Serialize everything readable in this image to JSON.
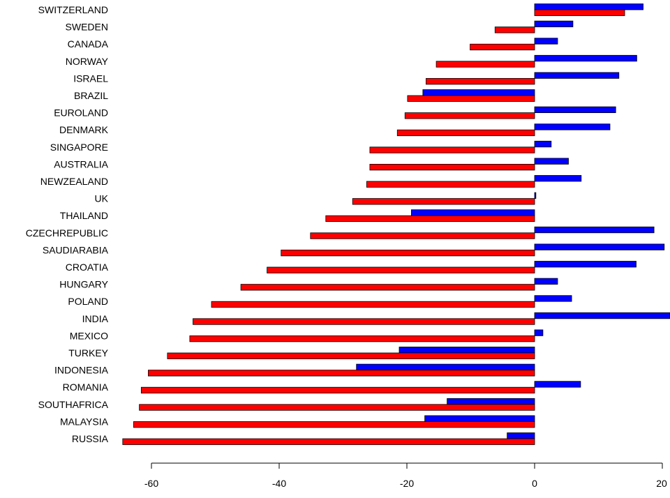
{
  "chart_data": {
    "type": "bar",
    "orientation": "horizontal",
    "title": "",
    "xlabel": "",
    "ylabel": "",
    "xlim": [
      -64.5,
      21.2
    ],
    "xticks": [
      -60,
      -40,
      -20,
      0,
      20
    ],
    "grid": false,
    "legend": "none",
    "categories": [
      "SWITZERLAND",
      "SWEDEN",
      "CANADA",
      "NORWAY",
      "ISRAEL",
      "BRAZIL",
      "EUROLAND",
      "DENMARK",
      "SINGAPORE",
      "AUSTRALIA",
      "NEWZEALAND",
      "UK",
      "THAILAND",
      "CZECHREPUBLIC",
      "SAUDIARABIA",
      "CROATIA",
      "HUNGARY",
      "POLAND",
      "INDIA",
      "MEXICO",
      "TURKEY",
      "INDONESIA",
      "ROMANIA",
      "SOUTHAFRICA",
      "MALAYSIA",
      "RUSSIA"
    ],
    "series": [
      {
        "color": "#0000ff",
        "values": [
          17.0,
          6.0,
          3.6,
          16.0,
          13.2,
          -17.5,
          12.7,
          11.8,
          2.6,
          5.3,
          7.3,
          0.2,
          -19.3,
          18.7,
          20.3,
          15.9,
          3.6,
          5.8,
          21.2,
          1.3,
          -21.2,
          -27.9,
          7.2,
          -13.7,
          -17.2,
          -4.3
        ]
      },
      {
        "color": "#ff0000",
        "values": [
          14.1,
          -6.2,
          -10.1,
          -15.4,
          -17.0,
          -19.9,
          -20.3,
          -21.5,
          -25.8,
          -25.8,
          -26.3,
          -28.5,
          -32.7,
          -35.1,
          -39.7,
          -41.9,
          -46.0,
          -50.6,
          -53.5,
          -54.0,
          -57.5,
          -60.5,
          -61.6,
          -61.9,
          -62.8,
          -64.5
        ]
      }
    ]
  }
}
